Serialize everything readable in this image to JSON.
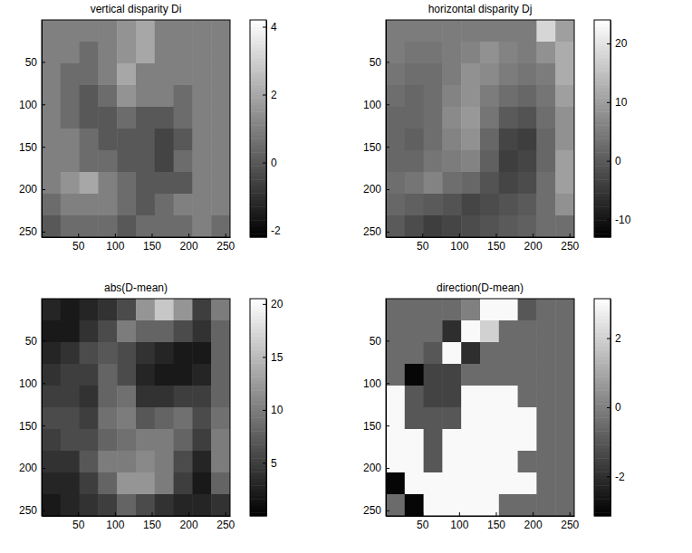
{
  "chart_data": [
    {
      "type": "heatmap",
      "title": "vertical disparity Di",
      "xlim": [
        0.5,
        256.5
      ],
      "ylim": [
        0.5,
        256.5
      ],
      "xticks": [
        50,
        100,
        150,
        200,
        250
      ],
      "yticks": [
        50,
        100,
        150,
        200,
        250
      ],
      "color_range": [
        -2.2,
        4.2
      ],
      "color_ticks": [
        -2,
        0,
        2,
        4
      ],
      "cells": [
        [
          1,
          1,
          1,
          1,
          1.5,
          2,
          1,
          1,
          1,
          1
        ],
        [
          1,
          1,
          0.5,
          1,
          1.5,
          2,
          1,
          1,
          1,
          1
        ],
        [
          1,
          0.5,
          0.5,
          1,
          2,
          1,
          1,
          1,
          1,
          1
        ],
        [
          1,
          0.5,
          0,
          0.5,
          1.5,
          1,
          1,
          0.5,
          1,
          1
        ],
        [
          1,
          0.5,
          0,
          0,
          0.5,
          0,
          0,
          0.5,
          1,
          1
        ],
        [
          1,
          1,
          0.5,
          0,
          0,
          0,
          -0.5,
          0,
          1,
          1
        ],
        [
          1,
          1,
          0.5,
          0.5,
          0,
          0,
          -0.5,
          0.5,
          1,
          1
        ],
        [
          1,
          1.5,
          2,
          1,
          0.5,
          0,
          0,
          0,
          1,
          1
        ],
        [
          0.5,
          1,
          1,
          1,
          0.5,
          0,
          0.5,
          1,
          1,
          1
        ],
        [
          0,
          0.5,
          0.5,
          0.5,
          0,
          0.5,
          0.5,
          0.5,
          1,
          0.5
        ]
      ]
    },
    {
      "type": "heatmap",
      "title": "horizontal disparity Dj",
      "xlim": [
        0.5,
        256.5
      ],
      "ylim": [
        0.5,
        256.5
      ],
      "xticks": [
        50,
        100,
        150,
        200,
        250
      ],
      "yticks": [
        50,
        100,
        150,
        200,
        250
      ],
      "color_range": [
        -13,
        24
      ],
      "color_ticks": [
        -10,
        0,
        10,
        20
      ],
      "cells": [
        [
          5,
          5,
          5,
          5,
          5,
          5,
          5,
          5,
          18,
          10
        ],
        [
          5,
          4,
          4,
          5,
          6,
          8,
          6,
          5,
          8,
          12
        ],
        [
          4,
          3,
          3,
          5,
          8,
          7,
          5,
          4,
          5,
          12
        ],
        [
          3,
          2,
          3,
          6,
          8,
          5,
          3,
          2,
          4,
          10
        ],
        [
          2,
          2,
          3,
          7,
          9,
          4,
          0,
          -1,
          3,
          8
        ],
        [
          2,
          1,
          3,
          6,
          8,
          2,
          -3,
          -4,
          2,
          8
        ],
        [
          2,
          2,
          4,
          5,
          6,
          1,
          -4,
          -3,
          2,
          10
        ],
        [
          3,
          4,
          6,
          3,
          2,
          -1,
          -3,
          -2,
          3,
          10
        ],
        [
          2,
          1,
          0,
          -1,
          -3,
          -2,
          -1,
          0,
          3,
          8
        ],
        [
          0,
          -2,
          -4,
          -3,
          -2,
          -1,
          0,
          1,
          3,
          3
        ]
      ]
    },
    {
      "type": "heatmap",
      "title": "abs(D-mean)",
      "xlim": [
        0.5,
        256.5
      ],
      "ylim": [
        0.5,
        256.5
      ],
      "xticks": [
        50,
        100,
        150,
        200,
        250
      ],
      "yticks": [
        50,
        100,
        150,
        200,
        250
      ],
      "color_range": [
        0,
        20.5
      ],
      "color_ticks": [
        5,
        10,
        15,
        20
      ],
      "cells": [
        [
          3,
          2,
          3,
          4,
          6,
          12,
          16,
          12,
          5,
          10
        ],
        [
          2,
          2,
          4,
          6,
          10,
          8,
          8,
          6,
          4,
          8
        ],
        [
          3,
          4,
          6,
          7,
          6,
          4,
          3,
          2,
          2,
          8
        ],
        [
          4,
          5,
          5,
          8,
          6,
          3,
          2,
          2,
          3,
          8
        ],
        [
          5,
          5,
          4,
          8,
          9,
          4,
          4,
          5,
          5,
          8
        ],
        [
          6,
          6,
          5,
          9,
          10,
          7,
          8,
          9,
          6,
          9
        ],
        [
          5,
          6,
          6,
          8,
          9,
          10,
          10,
          8,
          5,
          10
        ],
        [
          4,
          4,
          7,
          10,
          10,
          11,
          10,
          6,
          3,
          10
        ],
        [
          3,
          3,
          5,
          8,
          12,
          12,
          10,
          5,
          2,
          8
        ],
        [
          2,
          3,
          4,
          5,
          8,
          6,
          4,
          3,
          3,
          4
        ]
      ]
    },
    {
      "type": "heatmap",
      "title": "direction(D-mean)",
      "xlim": [
        0.5,
        256.5
      ],
      "ylim": [
        0.5,
        256.5
      ],
      "xticks": [
        50,
        100,
        150,
        200,
        250
      ],
      "yticks": [
        50,
        100,
        150,
        200,
        250
      ],
      "color_range": [
        -3.14,
        3.14
      ],
      "color_ticks": [
        -2,
        0,
        2
      ],
      "cells": [
        [
          -0.5,
          -0.5,
          -0.5,
          -0.5,
          0,
          3,
          3,
          -1,
          -0.5,
          -0.5
        ],
        [
          -0.5,
          -0.5,
          -0.5,
          -2,
          3,
          2,
          -0.5,
          -0.5,
          -0.5,
          -0.5
        ],
        [
          -0.5,
          -0.5,
          -1,
          3,
          -2,
          -0.5,
          -0.5,
          -0.5,
          -0.5,
          -0.5
        ],
        [
          -0.5,
          -3,
          -1.5,
          -1.5,
          -0.5,
          -0.5,
          -0.5,
          -0.5,
          -0.5,
          -0.5
        ],
        [
          3,
          -1,
          -1.5,
          -1.5,
          3,
          3,
          3,
          -0.5,
          -0.5,
          -0.5
        ],
        [
          3,
          -1,
          -1,
          -1,
          3,
          3,
          3,
          3,
          -0.5,
          -0.5
        ],
        [
          3,
          3,
          -1,
          3,
          3,
          3,
          3,
          3,
          -0.5,
          -0.5
        ],
        [
          3,
          3,
          -1,
          3,
          3,
          3,
          3,
          -0.5,
          -0.5,
          -0.5
        ],
        [
          -3,
          3,
          3,
          3,
          3,
          3,
          3,
          3,
          -0.5,
          -0.5
        ],
        [
          -0.5,
          -3,
          3,
          3,
          3,
          3,
          -0.5,
          -0.5,
          -0.5,
          -0.5
        ]
      ]
    }
  ]
}
